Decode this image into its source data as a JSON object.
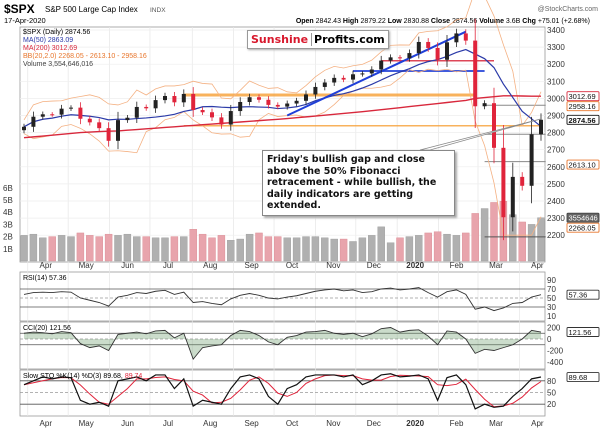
{
  "header": {
    "symbol": "$SPX",
    "name": "S&P 500 Large Cap Index",
    "exchange": "INDX",
    "date": "17-Apr-2020",
    "watermark": "@StockCharts.com",
    "open_label": "Open",
    "open": "2842.43",
    "high_label": "High",
    "high": "2879.22",
    "low_label": "Low",
    "low": "2830.88",
    "close_label": "Close",
    "close": "2874.56",
    "volume_label": "Volume",
    "volume": "3.6B",
    "chg_label": "Chg",
    "chg": "+75.01 (+2.68%)"
  },
  "legend": {
    "price": "$SPX (Daily) 2874.56",
    "ma50": "MA(50) 2863.09",
    "ma200": "MA(200) 3012.69",
    "bb": "BB(20,2.0) 2268.05 - 2613.10 - 2958.16",
    "volume": "Volume 3,554,646,016"
  },
  "logo": {
    "part1": "Sunshine",
    "part2": "Profits.com"
  },
  "annotation": "Friday's bullish gap and close above the 50% Fibonacci retracement - while bullish, the daily indicators are getting extended.",
  "price_boxes": {
    "ma200": "3012.69",
    "bb_upper": "2958.16",
    "close": "2874.56",
    "bb_mid": "2613.10",
    "volume": "3554646",
    "bb_lower": "2268.05"
  },
  "indicators": {
    "rsi": "RSI(14) 57.36",
    "rsi_box": "57.36",
    "cci": "CCI(20) 121.56",
    "cci_box": "121.56",
    "sto": "Slow STO %K(14) %D(3) 89.68,",
    "sto_d": "89.74",
    "sto_box": "89.68"
  },
  "colors": {
    "up": "#222222",
    "down": "#e0243b",
    "ma50": "#2b3aa8",
    "ma200": "#d8283c",
    "bb": "#f4b183",
    "orange": "#f7a540",
    "blue": "#1f3fd8"
  },
  "chart_data": {
    "type": "line",
    "title": "$SPX S&P 500 Large Cap Index INDX",
    "x_unit": "weeks from 29-Mar-2019",
    "xticks": [
      "Apr",
      "May",
      "Jun",
      "Jul",
      "Aug",
      "Sep",
      "Oct",
      "Nov",
      "Dec",
      "2020",
      "Feb",
      "Mar",
      "Apr"
    ],
    "price_ticks": [
      3400,
      3300,
      3200,
      3100,
      3000,
      2900,
      2800,
      2700,
      2600,
      2500,
      2400,
      2300,
      2200
    ],
    "price_ylim": [
      2200,
      3400
    ],
    "volume_ticks": [
      "6B",
      "5B",
      "4B",
      "3B",
      "2B",
      "1B"
    ],
    "close": [
      2834,
      2893,
      2907,
      2905,
      2940,
      2946,
      2881,
      2860,
      2826,
      2752,
      2873,
      2887,
      2950,
      2942,
      2990,
      3014,
      2977,
      3026,
      2932,
      2919,
      2889,
      2847,
      2926,
      2979,
      3007,
      2992,
      2962,
      2952,
      2970,
      2986,
      3023,
      3067,
      3093,
      3120,
      3110,
      3141,
      3146,
      3169,
      3221,
      3240,
      3235,
      3265,
      3330,
      3295,
      3226,
      3328,
      3380,
      3338,
      2954,
      2972,
      2711,
      2305,
      2541,
      2489,
      2790,
      2875
    ],
    "ma200": [
      2770,
      2775,
      2780,
      2785,
      2790,
      2795,
      2800,
      2803,
      2806,
      2808,
      2810,
      2814,
      2818,
      2822,
      2826,
      2830,
      2834,
      2838,
      2842,
      2846,
      2850,
      2854,
      2858,
      2862,
      2866,
      2870,
      2874,
      2878,
      2882,
      2887,
      2892,
      2897,
      2902,
      2907,
      2912,
      2917,
      2922,
      2928,
      2934,
      2940,
      2946,
      2952,
      2958,
      2964,
      2970,
      2976,
      2982,
      2988,
      3000,
      3005,
      3010,
      3015,
      3015,
      3014,
      3013,
      3012.69
    ],
    "volume_b": [
      2.1,
      2.2,
      1.9,
      2.0,
      2.1,
      2.0,
      2.3,
      2.1,
      2.0,
      2.2,
      2.1,
      2.2,
      2.0,
      2.0,
      1.9,
      1.9,
      2.0,
      2.0,
      2.6,
      2.2,
      1.9,
      2.1,
      1.7,
      1.8,
      2.2,
      2.3,
      2.0,
      2.0,
      1.9,
      1.9,
      2.0,
      2.0,
      1.9,
      1.8,
      1.8,
      1.6,
      1.9,
      2.1,
      2.8,
      1.5,
      1.9,
      2.0,
      2.1,
      2.3,
      2.4,
      2.2,
      2.1,
      2.3,
      3.9,
      4.3,
      4.8,
      4.9,
      3.8,
      3.2,
      3.0,
      3.55
    ],
    "fib_levels": [
      2960,
      2790,
      2630
    ],
    "horizontal_lines": [
      {
        "value": 3020,
        "color": "orange"
      },
      {
        "value": 2840,
        "color": "orange"
      },
      {
        "value": 3160,
        "color": "blue"
      },
      {
        "value": 3220,
        "color": "red"
      }
    ],
    "rsi": [
      58,
      62,
      63,
      62,
      64,
      63,
      50,
      45,
      40,
      32,
      52,
      56,
      62,
      60,
      65,
      67,
      58,
      63,
      40,
      42,
      38,
      35,
      48,
      56,
      60,
      56,
      50,
      48,
      52,
      55,
      60,
      65,
      68,
      70,
      66,
      68,
      62,
      64,
      70,
      72,
      68,
      70,
      73,
      62,
      52,
      64,
      68,
      58,
      25,
      30,
      22,
      28,
      38,
      40,
      52,
      57.36
    ],
    "rsi_ticks": [
      90,
      70,
      50,
      30,
      10
    ],
    "cci": [
      100,
      120,
      110,
      90,
      130,
      110,
      -80,
      -150,
      -120,
      -200,
      80,
      100,
      120,
      90,
      140,
      150,
      20,
      100,
      -350,
      -150,
      -120,
      -100,
      60,
      150,
      130,
      60,
      -50,
      -100,
      30,
      60,
      120,
      130,
      150,
      100,
      80,
      100,
      40,
      90,
      180,
      200,
      120,
      150,
      160,
      50,
      -100,
      140,
      120,
      0,
      -250,
      -180,
      -200,
      -150,
      -100,
      0,
      150,
      121.56
    ],
    "cci_ticks": [
      200,
      0,
      -200,
      -400
    ],
    "sto_k": [
      70,
      80,
      90,
      85,
      90,
      88,
      30,
      20,
      25,
      15,
      80,
      85,
      90,
      80,
      95,
      95,
      60,
      85,
      15,
      30,
      25,
      20,
      60,
      90,
      95,
      85,
      40,
      20,
      60,
      70,
      90,
      95,
      95,
      95,
      90,
      95,
      70,
      80,
      95,
      98,
      90,
      92,
      95,
      85,
      30,
      88,
      95,
      70,
      8,
      20,
      12,
      15,
      40,
      60,
      85,
      89.68
    ],
    "sto_ticks": [
      80,
      50,
      20
    ]
  }
}
